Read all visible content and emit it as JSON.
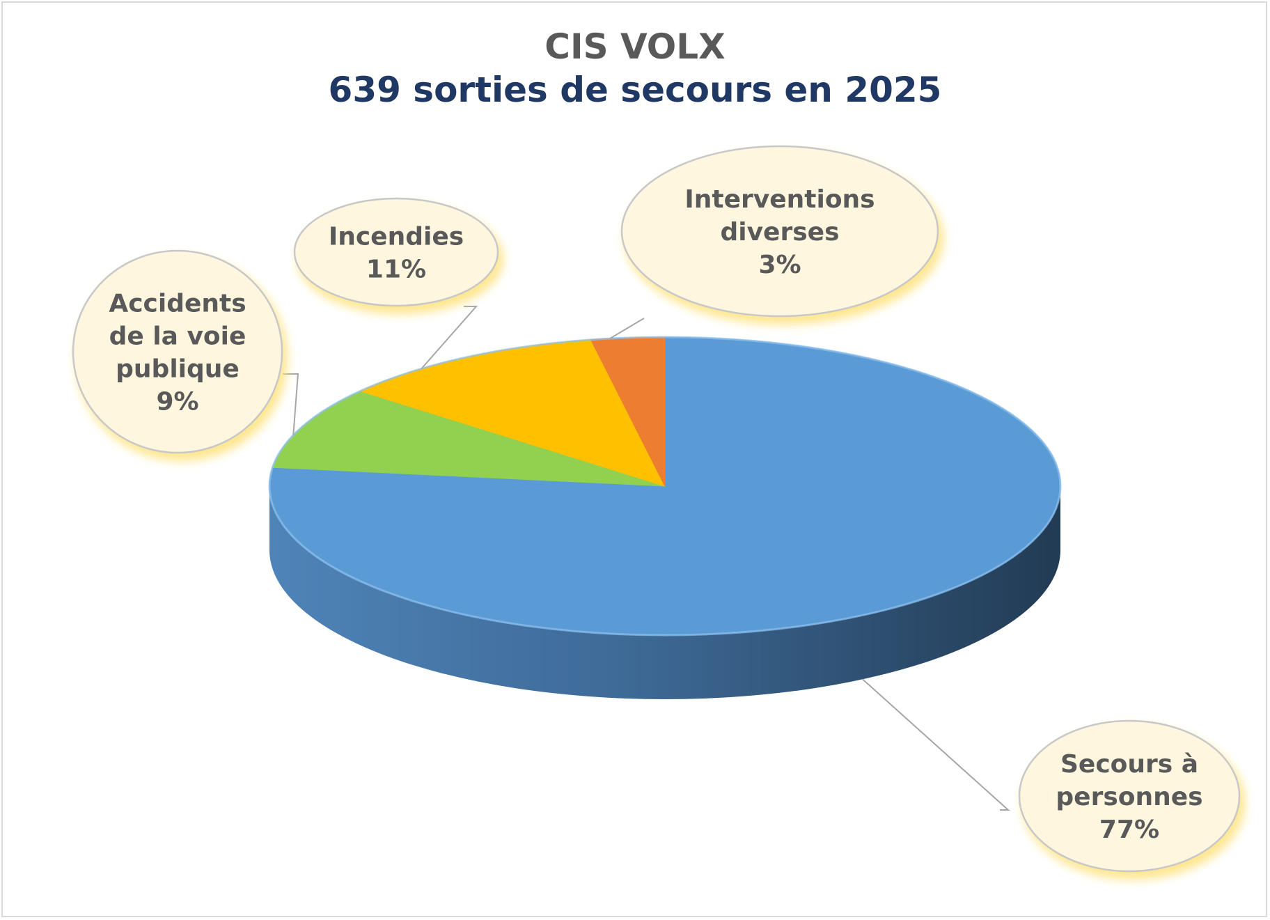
{
  "chart_data": {
    "type": "pie",
    "title": "CIS VOLX",
    "subtitle": "639 sorties de secours en 2025",
    "slices": [
      {
        "label": "Secours à personnes",
        "label_lines": [
          "Secours à",
          "personnes"
        ],
        "value": 77,
        "value_label": "77%",
        "color": "#5b9bd5"
      },
      {
        "label": "Accidents de la voie publique",
        "label_lines": [
          "Accidents",
          "de la voie",
          "publique"
        ],
        "value": 9,
        "value_label": "9%",
        "color": "#92d050"
      },
      {
        "label": "Incendies",
        "label_lines": [
          "Incendies"
        ],
        "value": 11,
        "value_label": "11%",
        "color": "#ffc000"
      },
      {
        "label": "Interventions diverses",
        "label_lines": [
          "Interventions",
          "diverses"
        ],
        "value": 3,
        "value_label": "3%",
        "color": "#ed7d31"
      }
    ]
  },
  "colors": {
    "title": "#595959",
    "subtitle": "#1f3864",
    "callout_fill": "#fff6e0",
    "callout_stroke": "#c8c8c8",
    "callout_glow": "#ffe27a",
    "leader_line": "#a6a6a6",
    "side_light": "#4f84b8",
    "side_dark": "#223b54"
  }
}
